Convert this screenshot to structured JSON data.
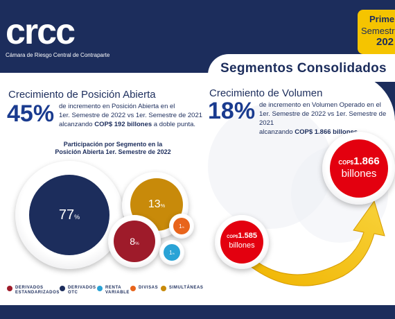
{
  "brand": {
    "logo_text": "crcc",
    "subtitle": "Cámara de Riesgo Central de Contraparte"
  },
  "badge": {
    "line1": "Prime",
    "line2": "Semestre",
    "line3": "202"
  },
  "section_title": "Segmentos  Consolidados",
  "open_position": {
    "heading": "Crecimiento de Posición Abierta",
    "percent": "45%",
    "desc_line1": "de incremento en Posición Abierta en el",
    "desc_line2": "1er. Semestre de 2022 vs 1er. Semestre de 2021",
    "desc_line3_prefix": "alcanzando",
    "desc_line3_amount": "COP$ 192 billones",
    "desc_line3_suffix": "a doble punta."
  },
  "volume": {
    "heading": "Crecimiento de Volumen",
    "percent": "18%",
    "desc_line1": "de incremento en Volumen Operado en el",
    "desc_line2": "1er. Semestre de 2022 vs 1er. Semestre de 2021",
    "desc_line3_prefix": "alcanzando",
    "desc_line3_amount": "COP$ 1.866 billones",
    "desc_line3_suffix": "."
  },
  "participation_title_line1": "Participación por Segmento en la",
  "participation_title_line2": "Posición Abierta 1er. Semestre de 2022",
  "chart_data": {
    "type": "bubble",
    "title": "Participación por Segmento en la Posición Abierta 1er. Semestre de 2022",
    "series": [
      {
        "name": "DERIVADOS OTC",
        "value": 77,
        "label": "77",
        "unit": "%",
        "color": "#1c2d5c"
      },
      {
        "name": "SIMULTÁNEAS",
        "value": 13,
        "label": "13",
        "unit": "%",
        "color": "#c88a0a"
      },
      {
        "name": "DERIVADOS ESTANDARIZADOS",
        "value": 8,
        "label": "8",
        "unit": "%",
        "color": "#9e1b2a"
      },
      {
        "name": "DIVISAS",
        "value": 1,
        "label": "1",
        "unit": "%",
        "color": "#e8641b"
      },
      {
        "name": "RENTA VARIABLE",
        "value": 1,
        "label": "1",
        "unit": "%",
        "color": "#2aa3d6"
      }
    ]
  },
  "legend": [
    {
      "line1": "DERIVADOS",
      "line2": "ESTANDARIZADOS",
      "color": "#9e1b2a"
    },
    {
      "line1": "DERIVADOS",
      "line2": "OTC",
      "color": "#1c2d5c"
    },
    {
      "line1": "RENTA",
      "line2": "VARIABLE",
      "color": "#2aa3d6"
    },
    {
      "line1": "DIVISAS",
      "line2": "",
      "color": "#e8641b"
    },
    {
      "line1": "SIMULTÁNEAS",
      "line2": "",
      "color": "#c88a0a"
    }
  ],
  "volume_amounts": {
    "prev": {
      "currency": "COP$",
      "value": "1.585",
      "unit": "billones"
    },
    "current": {
      "currency": "COP$",
      "value": "1.866",
      "unit": "billones"
    }
  },
  "colors": {
    "navy": "#1c2d5c",
    "accent_blue": "#1a3b8f",
    "red": "#e3000f",
    "yellow": "#f5c400"
  }
}
